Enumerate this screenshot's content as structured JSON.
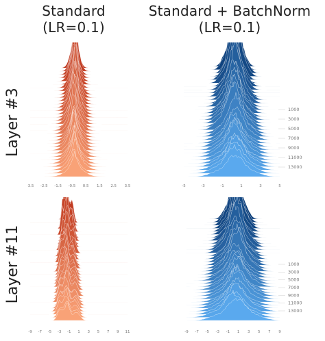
{
  "column_titles": [
    {
      "line1": "Standard",
      "line2": "(LR=0.1)"
    },
    {
      "line1": "Standard + BatchNorm",
      "line2": "(LR=0.1)"
    }
  ],
  "row_labels": [
    "Layer #3",
    "Layer #11"
  ],
  "colors": {
    "standard_dark": "#c0391f",
    "standard_light": "#f9a277",
    "batchnorm_dark": "#0d3f7a",
    "batchnorm_light": "#5aa9ee",
    "ridge_line": "#ffffff",
    "tick_text": "#777777"
  },
  "chart_data": [
    {
      "type": "area",
      "panel": "standard-layer3",
      "x_tick_labels": [
        "-3.5",
        "-2.5",
        "-1.5",
        "-0.5",
        "0.5",
        "1.5",
        "2.5",
        "3.5"
      ],
      "xlim": [
        -3.5,
        3.5
      ],
      "y_tick_labels": [],
      "center": -0.3,
      "spread": 0.55,
      "peak_style": "sharp"
    },
    {
      "type": "area",
      "panel": "batchnorm-layer3",
      "x_tick_labels": [
        "-5",
        "-3",
        "-1",
        "1",
        "3",
        "5"
      ],
      "xlim": [
        -5,
        5
      ],
      "y_tick_labels": [
        "1000",
        "3000",
        "5000",
        "7000",
        "9000",
        "11000",
        "13000"
      ],
      "center": 0.3,
      "spread": 1.3,
      "peak_style": "broad"
    },
    {
      "type": "area",
      "panel": "standard-layer11",
      "x_tick_labels": [
        "-9",
        "-7",
        "-5",
        "-3",
        "-1",
        "1",
        "3",
        "5",
        "7",
        "9",
        "11"
      ],
      "xlim": [
        -9,
        11
      ],
      "y_tick_labels": [],
      "center": -1.5,
      "spread": 2.0,
      "peak_style": "multimodal"
    },
    {
      "type": "area",
      "panel": "batchnorm-layer11",
      "x_tick_labels": [
        "-9",
        "-7",
        "-5",
        "-3",
        "-1",
        "1",
        "3",
        "5",
        "7",
        "9"
      ],
      "xlim": [
        -9,
        9
      ],
      "y_tick_labels": [
        "1000",
        "3000",
        "5000",
        "7000",
        "9000",
        "11000",
        "13000"
      ],
      "center": 0.5,
      "spread": 2.6,
      "peak_style": "broad"
    }
  ]
}
